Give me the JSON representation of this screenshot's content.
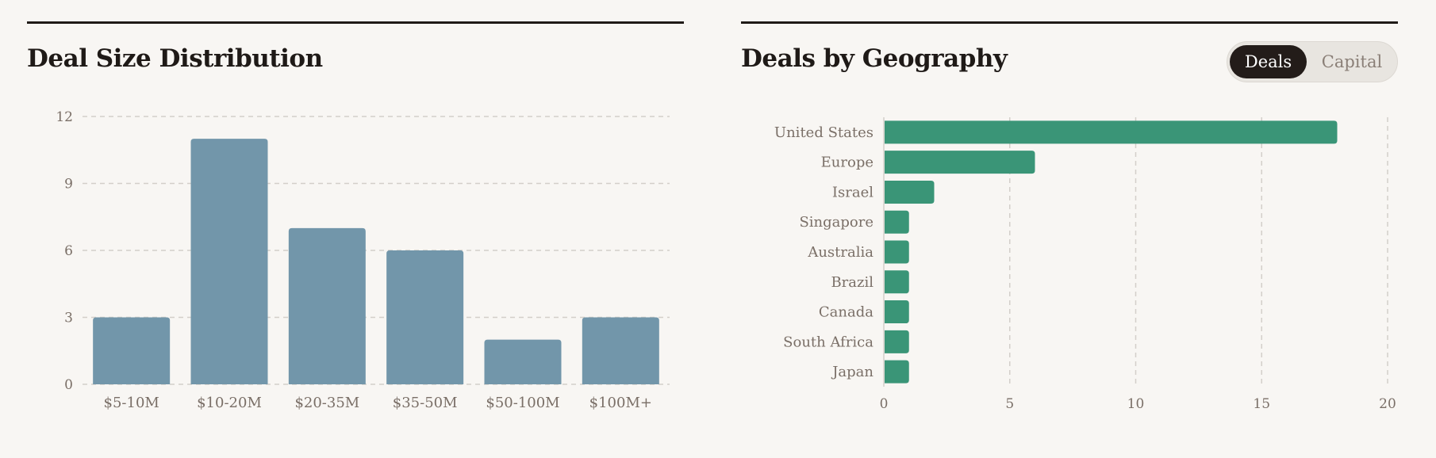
{
  "left_panel": {
    "title": "Deal Size Distribution"
  },
  "right_panel": {
    "title": "Deals by Geography",
    "toggle": {
      "options": [
        "Deals",
        "Capital"
      ],
      "selected": "Deals"
    }
  },
  "colors": {
    "bar_left": "#7296aa",
    "bar_right": "#3a9577",
    "grid": "#d3cfca",
    "text": "#7a6f67",
    "title": "#1f1a17"
  },
  "chart_data": [
    {
      "type": "bar",
      "orientation": "vertical",
      "title": "Deal Size Distribution",
      "categories": [
        "$5-10M",
        "$10-20M",
        "$20-35M",
        "$35-50M",
        "$50-100M",
        "$100M+"
      ],
      "values": [
        3,
        11,
        7,
        6,
        2,
        3
      ],
      "ylim": [
        0,
        12
      ],
      "yticks": [
        0,
        3,
        6,
        9,
        12
      ],
      "grid": "horizontal-dashed"
    },
    {
      "type": "bar",
      "orientation": "horizontal",
      "title": "Deals by Geography",
      "categories": [
        "United States",
        "Europe",
        "Israel",
        "Singapore",
        "Australia",
        "Brazil",
        "Canada",
        "South Africa",
        "Japan"
      ],
      "values": [
        18,
        6,
        2,
        1,
        1,
        1,
        1,
        1,
        1
      ],
      "xlim": [
        0,
        20
      ],
      "xticks": [
        0,
        5,
        10,
        15,
        20
      ],
      "grid": "vertical-dashed"
    }
  ]
}
